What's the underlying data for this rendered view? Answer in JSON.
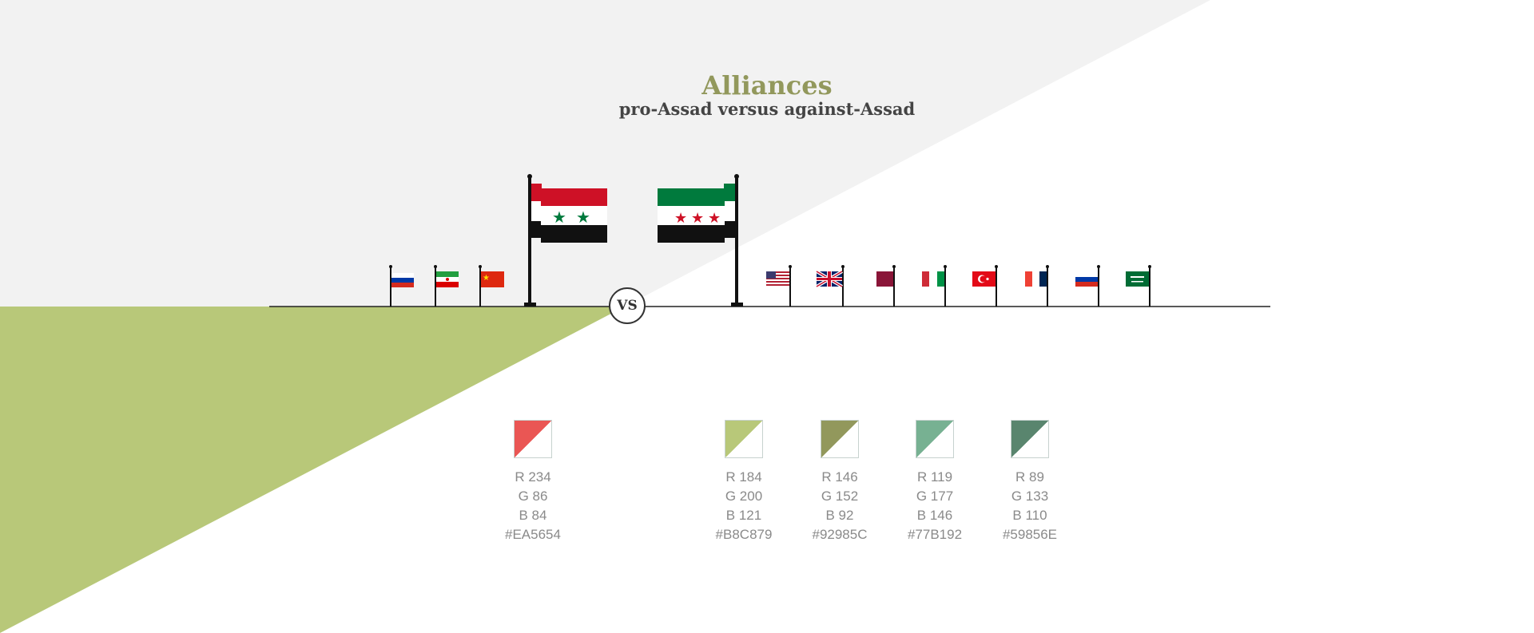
{
  "title": "Alliances",
  "subtitle": "pro-Assad versus against-Assad",
  "vs_label": "VS",
  "colors": {
    "top_background": "#F2F2F2",
    "green_wedge": "#B8C879",
    "title": "#92985C",
    "subtitle": "#444444"
  },
  "pro_assad": {
    "main_flag": "syria-government-flag",
    "allies": [
      "russia-flag",
      "iran-flag",
      "china-flag"
    ]
  },
  "against_assad": {
    "main_flag": "syria-opposition-flag",
    "allies": [
      "usa-flag",
      "uk-flag",
      "qatar-flag",
      "italy-flag",
      "turkey-flag",
      "france-flag",
      "russia-flag",
      "saudi-arabia-flag"
    ]
  },
  "swatches": [
    {
      "r": "R 234",
      "g": "G 86",
      "b": "B 84",
      "hex": "#EA5654"
    },
    {
      "r": "R 184",
      "g": "G 200",
      "b": "B 121",
      "hex": "#B8C879"
    },
    {
      "r": "R 146",
      "g": "G 152",
      "b": "B 92",
      "hex": "#92985C"
    },
    {
      "r": "R 119",
      "g": "G 177",
      "b": "B 146",
      "hex": "#77B192"
    },
    {
      "r": "R 89",
      "g": "G 133",
      "b": "B 110",
      "hex": "#59856E"
    }
  ]
}
